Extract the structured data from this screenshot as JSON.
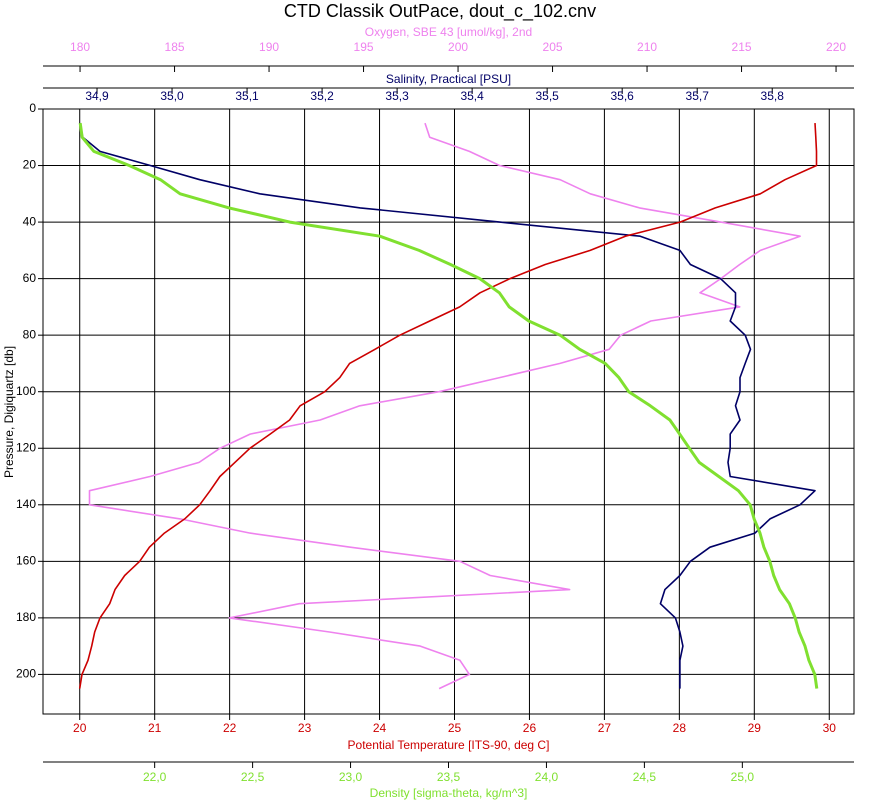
{
  "chart_data": {
    "type": "line",
    "title": "CTD Classik OutPace, dout_c_102.cnv",
    "ylabel": "Pressure, Digiquartz [db]",
    "ylim": [
      0,
      214
    ],
    "yticks": [
      0,
      20,
      40,
      60,
      80,
      100,
      120,
      140,
      160,
      180,
      200
    ],
    "grid": true,
    "pressure": [
      5,
      10,
      15,
      20,
      25,
      30,
      35,
      40,
      45,
      50,
      55,
      60,
      65,
      70,
      75,
      80,
      85,
      90,
      95,
      100,
      105,
      110,
      115,
      120,
      125,
      130,
      135,
      140,
      145,
      150,
      155,
      160,
      165,
      170,
      175,
      180,
      185,
      190,
      195,
      200,
      205
    ],
    "axes": [
      {
        "label": "Oxygen, SBE 43 [umol/kg], 2nd",
        "side": "top",
        "color": "#ee82ee",
        "xlim": [
          178.04,
          220.95
        ],
        "xticks": [
          180,
          185,
          190,
          195,
          200,
          205,
          210,
          215,
          220
        ]
      },
      {
        "label": "Salinity, Practical [PSU]",
        "side": "top",
        "color": "#000066",
        "xlim": [
          34.828,
          35.909
        ],
        "xticks": [
          {
            "value": 34.9,
            "label": "34,9"
          },
          {
            "value": 35.0,
            "label": "35,0"
          },
          {
            "value": 35.1,
            "label": "35,1"
          },
          {
            "value": 35.2,
            "label": "35,2"
          },
          {
            "value": 35.3,
            "label": "35,3"
          },
          {
            "value": 35.4,
            "label": "35,4"
          },
          {
            "value": 35.5,
            "label": "35,5"
          },
          {
            "value": 35.6,
            "label": "35,6"
          },
          {
            "value": 35.7,
            "label": "35,7"
          },
          {
            "value": 35.8,
            "label": "35,8"
          }
        ]
      },
      {
        "label": "Potential Temperature [ITS-90, deg C]",
        "side": "bottom",
        "color": "#cc0000",
        "grid": true,
        "xlim": [
          19.51,
          30.33
        ],
        "xticks": [
          20,
          21,
          22,
          23,
          24,
          25,
          26,
          27,
          28,
          29,
          30
        ]
      },
      {
        "label": "Density [sigma-theta, kg/m^3]",
        "side": "bottom",
        "color": "#80e030",
        "xlim": [
          21.43,
          25.57
        ],
        "xticks": [
          {
            "value": 22.0,
            "label": "22,0"
          },
          {
            "value": 22.5,
            "label": "22,5"
          },
          {
            "value": 23.0,
            "label": "23,0"
          },
          {
            "value": 23.5,
            "label": "23,5"
          },
          {
            "value": 24.0,
            "label": "24,0"
          },
          {
            "value": 24.5,
            "label": "24,5"
          },
          {
            "value": 25.0,
            "label": "25,0"
          }
        ]
      }
    ],
    "series": [
      {
        "axis": 0,
        "color": "#ee82ee",
        "values": [
          198.25,
          198.5,
          200.6,
          202.2,
          205.4,
          207.0,
          209.6,
          213.9,
          218.1,
          216.0,
          214.9,
          213.9,
          212.8,
          214.9,
          210.2,
          208.6,
          208.0,
          205.4,
          202.2,
          199.0,
          194.8,
          192.7,
          189.0,
          187.4,
          186.3,
          183.7,
          180.5,
          180.5,
          185.3,
          189.0,
          194.3,
          200.1,
          201.7,
          205.9,
          191.6,
          187.9,
          193.2,
          198.0,
          200.1,
          200.6,
          199.0
        ]
      },
      {
        "axis": 1,
        "color": "#000066",
        "values": [
          34.877,
          34.881,
          34.904,
          34.971,
          35.037,
          35.117,
          35.251,
          35.437,
          35.624,
          35.677,
          35.691,
          35.731,
          35.751,
          35.751,
          35.744,
          35.764,
          35.771,
          35.764,
          35.757,
          35.757,
          35.751,
          35.757,
          35.744,
          35.744,
          35.741,
          35.744,
          35.857,
          35.837,
          35.797,
          35.777,
          35.717,
          35.691,
          35.677,
          35.657,
          35.651,
          35.671,
          35.677,
          35.681,
          35.677,
          35.677,
          35.677
        ]
      },
      {
        "axis": 2,
        "color": "#cc0000",
        "values": [
          29.81,
          29.82,
          29.83,
          29.83,
          29.41,
          29.08,
          28.48,
          28.01,
          27.28,
          26.81,
          26.21,
          25.74,
          25.34,
          25.07,
          24.67,
          24.27,
          23.94,
          23.6,
          23.47,
          23.27,
          22.94,
          22.8,
          22.54,
          22.27,
          22.07,
          21.87,
          21.74,
          21.6,
          21.4,
          21.13,
          20.93,
          20.8,
          20.6,
          20.47,
          20.4,
          20.27,
          20.2,
          20.16,
          20.11,
          20.03,
          20.0
        ]
      },
      {
        "axis": 3,
        "color": "#80e030",
        "values": [
          21.62,
          21.63,
          21.69,
          21.87,
          22.03,
          22.13,
          22.38,
          22.69,
          23.15,
          23.35,
          23.51,
          23.66,
          23.76,
          23.81,
          23.91,
          24.07,
          24.17,
          24.3,
          24.37,
          24.42,
          24.53,
          24.63,
          24.68,
          24.73,
          24.78,
          24.88,
          24.98,
          25.04,
          25.06,
          25.09,
          25.11,
          25.14,
          25.16,
          25.19,
          25.24,
          25.27,
          25.29,
          25.32,
          25.34,
          25.37,
          25.38
        ]
      }
    ]
  }
}
